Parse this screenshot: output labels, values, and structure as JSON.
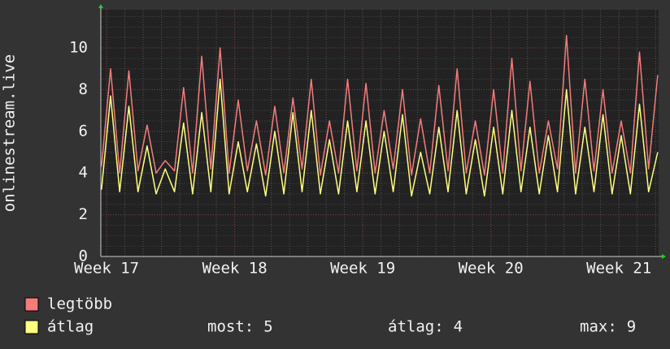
{
  "chart_data": {
    "type": "line",
    "ylabel": "onlinestream.live",
    "xlim": [
      16.955,
      21.31
    ],
    "xticks": [
      {
        "value": 17,
        "label": "Week 17"
      },
      {
        "value": 18,
        "label": "Week 18"
      },
      {
        "value": 19,
        "label": "Week 19"
      },
      {
        "value": 20,
        "label": "Week 20"
      },
      {
        "value": 21,
        "label": "Week 21"
      }
    ],
    "ylim": [
      0,
      11.83
    ],
    "yticks": [
      0,
      2,
      4,
      6,
      8,
      10
    ],
    "grid": true,
    "x": [
      16.96,
      17.031,
      17.102,
      17.174,
      17.245,
      17.316,
      17.387,
      17.458,
      17.53,
      17.601,
      17.672,
      17.743,
      17.814,
      17.886,
      17.957,
      18.028,
      18.099,
      18.17,
      18.242,
      18.313,
      18.384,
      18.455,
      18.526,
      18.598,
      18.669,
      18.74,
      18.811,
      18.882,
      18.954,
      19.025,
      19.096,
      19.167,
      19.238,
      19.31,
      19.381,
      19.452,
      19.523,
      19.594,
      19.666,
      19.737,
      19.808,
      19.879,
      19.95,
      20.022,
      20.093,
      20.164,
      20.235,
      20.306,
      20.378,
      20.449,
      20.52,
      20.591,
      20.662,
      20.734,
      20.805,
      20.876,
      20.947,
      21.018,
      21.09,
      21.161,
      21.232,
      21.303
    ],
    "series": [
      {
        "name": "legtöbb",
        "color": "#f47c7c",
        "values": [
          4.3,
          9.0,
          4.0,
          8.9,
          4.1,
          6.3,
          4.0,
          4.6,
          4.1,
          8.1,
          4.0,
          9.6,
          4.2,
          10.0,
          4.0,
          7.5,
          4.1,
          6.5,
          3.9,
          7.2,
          4.0,
          7.6,
          4.2,
          8.5,
          3.9,
          6.5,
          4.0,
          8.5,
          4.1,
          8.3,
          4.0,
          7.0,
          4.2,
          8.0,
          3.9,
          6.6,
          4.0,
          8.2,
          4.1,
          9.0,
          4.0,
          6.5,
          3.9,
          8.0,
          4.0,
          9.5,
          4.1,
          8.4,
          4.0,
          6.5,
          4.2,
          10.6,
          4.0,
          8.5,
          4.1,
          8.0,
          4.0,
          6.5,
          4.0,
          9.8,
          4.2,
          8.7
        ]
      },
      {
        "name": "átlag",
        "color": "#ffff80",
        "values": [
          3.2,
          7.7,
          3.1,
          7.2,
          3.1,
          5.3,
          3.0,
          4.2,
          3.1,
          6.4,
          3.0,
          6.9,
          3.1,
          8.5,
          3.0,
          5.5,
          3.1,
          5.4,
          2.9,
          6.0,
          3.0,
          6.9,
          3.1,
          7.0,
          3.0,
          5.6,
          3.0,
          6.5,
          3.1,
          6.5,
          3.0,
          6.0,
          3.1,
          6.8,
          2.9,
          5.0,
          3.0,
          6.2,
          3.1,
          7.0,
          3.0,
          5.6,
          2.9,
          6.2,
          3.0,
          7.0,
          3.1,
          6.2,
          3.0,
          5.8,
          3.1,
          8.0,
          3.0,
          6.2,
          3.1,
          6.8,
          3.0,
          5.8,
          3.0,
          7.3,
          3.1,
          5.0
        ]
      }
    ],
    "stats": [
      {
        "label": "most:",
        "value": 5
      },
      {
        "label": "átlag:",
        "value": 4
      },
      {
        "label": "max:",
        "value": 9
      }
    ]
  }
}
